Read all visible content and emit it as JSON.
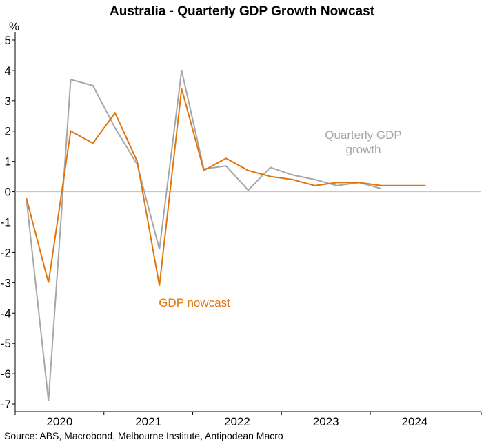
{
  "chart_data": {
    "type": "line",
    "title": "Australia - Quarterly GDP Growth Nowcast",
    "ylabel": "%",
    "xlabel": "",
    "ylim": [
      -7.25,
      5.25
    ],
    "yticks": [
      5,
      4,
      3,
      2,
      1,
      0,
      -1,
      -2,
      -3,
      -4,
      -5,
      -6,
      -7
    ],
    "xlim": [
      2019.5,
      2024.75
    ],
    "year_labels": [
      {
        "label": "2020",
        "x": 2020.0
      },
      {
        "label": "2021",
        "x": 2021.0
      },
      {
        "label": "2022",
        "x": 2022.0
      },
      {
        "label": "2023",
        "x": 2023.0
      },
      {
        "label": "2024",
        "x": 2024.0
      }
    ],
    "year_boundaries": [
      2020.5,
      2021.5,
      2022.5,
      2023.5
    ],
    "series": [
      {
        "name": "Quarterly GDP growth",
        "color": "#a6a6a6",
        "annotation": [
          "Quarterly GDP",
          "growth"
        ],
        "x": [
          2019.625,
          2019.875,
          2020.125,
          2020.375,
          2020.625,
          2020.875,
          2021.125,
          2021.375,
          2021.625,
          2021.875,
          2022.125,
          2022.375,
          2022.625,
          2022.875,
          2023.125,
          2023.375,
          2023.625
        ],
        "values": [
          -0.2,
          -6.9,
          3.7,
          3.5,
          2.1,
          0.9,
          -1.9,
          4.0,
          0.75,
          0.85,
          0.05,
          0.8,
          0.55,
          0.4,
          0.2,
          0.3,
          0.1
        ]
      },
      {
        "name": "GDP nowcast",
        "color": "#e0750b",
        "annotation": [
          "GDP nowcast"
        ],
        "x": [
          2019.625,
          2019.875,
          2020.125,
          2020.375,
          2020.625,
          2020.875,
          2021.125,
          2021.375,
          2021.625,
          2021.875,
          2022.125,
          2022.375,
          2022.625,
          2022.875,
          2023.125,
          2023.375,
          2023.625,
          2023.875,
          2024.125
        ],
        "values": [
          -0.2,
          -3.0,
          2.0,
          1.6,
          2.6,
          1.0,
          -3.1,
          3.4,
          0.7,
          1.1,
          0.7,
          0.5,
          0.4,
          0.2,
          0.3,
          0.3,
          0.2,
          0.2,
          0.2
        ]
      }
    ]
  },
  "footer": {
    "source": "Source: ABS, Macrobond, Melbourne Institute, Antipodean Macro"
  }
}
